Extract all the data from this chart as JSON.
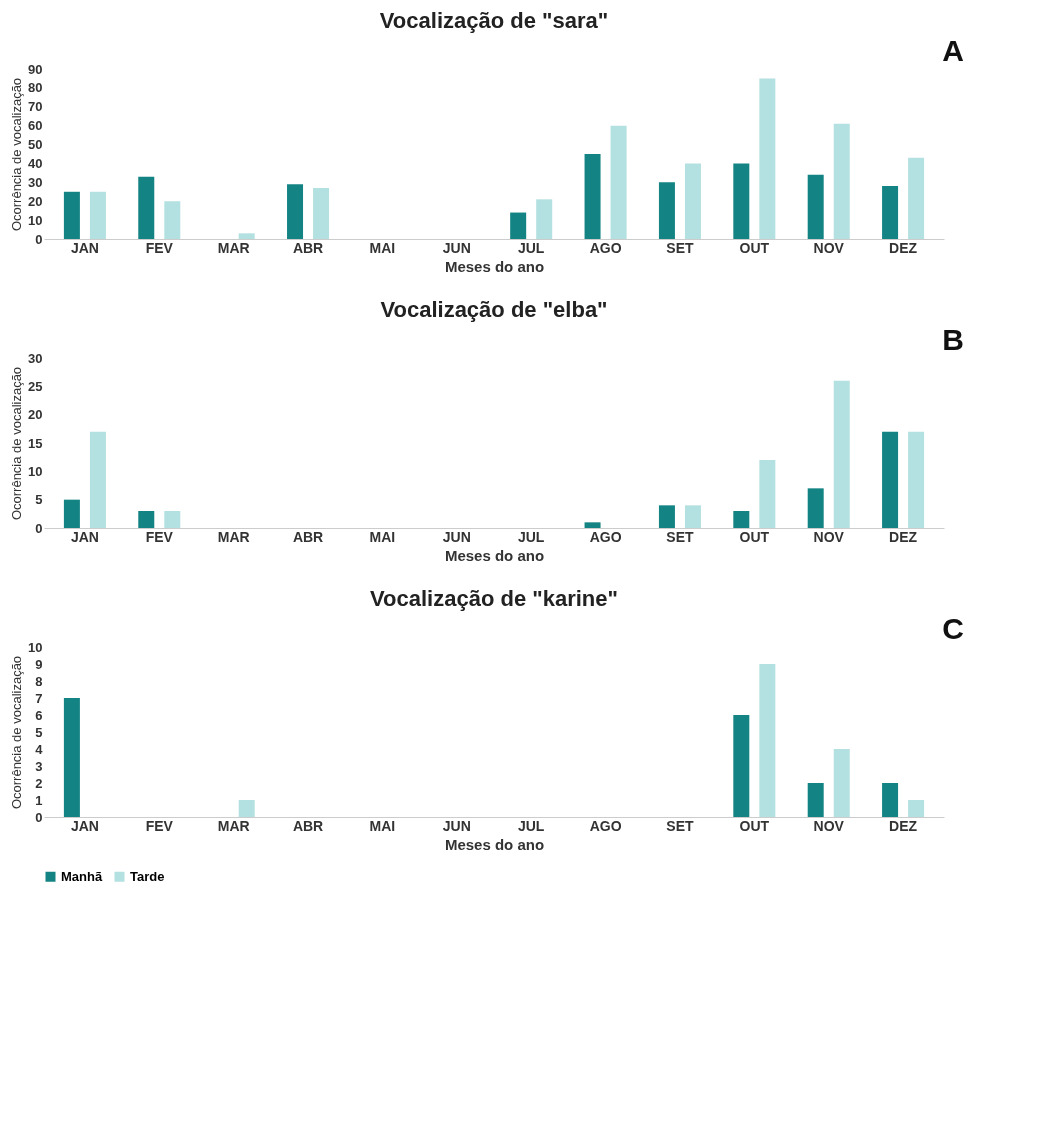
{
  "chart_data": [
    {
      "type": "bar",
      "title": "Vocalização de \"sara\"",
      "xlabel": "Meses do ano",
      "ylabel": "Ocorrência de vocalização",
      "annotations": [
        "A"
      ],
      "categories": [
        "JAN",
        "FEV",
        "MAR",
        "ABR",
        "MAI",
        "JUN",
        "JUL",
        "AGO",
        "SET",
        "OUT",
        "NOV",
        "DEZ"
      ],
      "series": [
        {
          "name": "Manhã",
          "color": "#138383",
          "values": [
            25,
            33,
            0,
            29,
            0,
            0,
            14,
            45,
            30,
            40,
            34,
            28
          ]
        },
        {
          "name": "Tarde",
          "color": "#b3e0e0",
          "values": [
            25,
            20,
            3,
            27,
            0,
            0,
            21,
            60,
            40,
            85,
            61,
            43
          ]
        }
      ],
      "ylim": [
        0,
        90
      ],
      "yticks": [
        0,
        10,
        20,
        30,
        40,
        50,
        60,
        70,
        80,
        90
      ],
      "grid": false,
      "legend": "bottom"
    },
    {
      "type": "bar",
      "title": "Vocalização de \"elba\"",
      "xlabel": "Meses do ano",
      "ylabel": "Ocorrência de vocalização",
      "annotations": [
        "B"
      ],
      "categories": [
        "JAN",
        "FEV",
        "MAR",
        "ABR",
        "MAI",
        "JUN",
        "JUL",
        "AGO",
        "SET",
        "OUT",
        "NOV",
        "DEZ"
      ],
      "series": [
        {
          "name": "Manhã",
          "color": "#138383",
          "values": [
            5,
            3,
            0,
            0,
            0,
            0,
            0,
            1,
            4,
            3,
            7,
            17
          ]
        },
        {
          "name": "Tarde",
          "color": "#b3e0e0",
          "values": [
            17,
            3,
            0,
            0,
            0,
            0,
            0,
            0,
            4,
            12,
            26,
            17
          ]
        }
      ],
      "ylim": [
        0,
        30
      ],
      "yticks": [
        0,
        5,
        10,
        15,
        20,
        25,
        30
      ],
      "grid": false,
      "legend": "bottom"
    },
    {
      "type": "bar",
      "title": "Vocalização de \"karine\"",
      "xlabel": "Meses do ano",
      "ylabel": "Ocorrência  de vocalização",
      "annotations": [
        "C"
      ],
      "categories": [
        "JAN",
        "FEV",
        "MAR",
        "ABR",
        "MAI",
        "JUN",
        "JUL",
        "AGO",
        "SET",
        "OUT",
        "NOV",
        "DEZ"
      ],
      "series": [
        {
          "name": "Manhã",
          "color": "#138383",
          "values": [
            7,
            0,
            0,
            0,
            0,
            0,
            0,
            0,
            0,
            6,
            2,
            2
          ]
        },
        {
          "name": "Tarde",
          "color": "#b3e0e0",
          "values": [
            0,
            0,
            1,
            0,
            0,
            0,
            0,
            0,
            0,
            9,
            4,
            1
          ]
        }
      ],
      "ylim": [
        0,
        10
      ],
      "yticks": [
        0,
        1,
        2,
        3,
        4,
        5,
        6,
        7,
        8,
        9,
        10
      ],
      "grid": false,
      "legend": "bottom"
    }
  ]
}
